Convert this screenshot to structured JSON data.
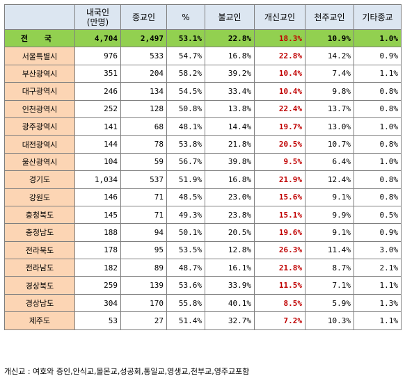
{
  "table": {
    "headers": [
      "",
      "내국인\n(만명)",
      "종교인",
      "%",
      "불교인",
      "개신교인",
      "천주교인",
      "기타종교"
    ],
    "total": {
      "region": "전 국",
      "cells": [
        "4,704",
        "2,497",
        "53.1%",
        "22.8%",
        "18.3%",
        "10.9%",
        "1.0%"
      ]
    },
    "rows": [
      {
        "region": "서울특별시",
        "cells": [
          "976",
          "533",
          "54.7%",
          "16.8%",
          "22.8%",
          "14.2%",
          "0.9%"
        ]
      },
      {
        "region": "부산광역시",
        "cells": [
          "351",
          "204",
          "58.2%",
          "39.2%",
          "10.4%",
          "7.4%",
          "1.1%"
        ]
      },
      {
        "region": "대구광역시",
        "cells": [
          "246",
          "134",
          "54.5%",
          "33.4%",
          "10.4%",
          "9.8%",
          "0.8%"
        ]
      },
      {
        "region": "인천광역시",
        "cells": [
          "252",
          "128",
          "50.8%",
          "13.8%",
          "22.4%",
          "13.7%",
          "0.8%"
        ]
      },
      {
        "region": "광주광역시",
        "cells": [
          "141",
          "68",
          "48.1%",
          "14.4%",
          "19.7%",
          "13.0%",
          "1.0%"
        ]
      },
      {
        "region": "대전광역시",
        "cells": [
          "144",
          "78",
          "53.8%",
          "21.8%",
          "20.5%",
          "10.7%",
          "0.8%"
        ]
      },
      {
        "region": "울산광역시",
        "cells": [
          "104",
          "59",
          "56.7%",
          "39.8%",
          "9.5%",
          "6.4%",
          "1.0%"
        ]
      },
      {
        "region": "경기도",
        "cells": [
          "1,034",
          "537",
          "51.9%",
          "16.8%",
          "21.9%",
          "12.4%",
          "0.8%"
        ]
      },
      {
        "region": "강원도",
        "cells": [
          "146",
          "71",
          "48.5%",
          "23.0%",
          "15.6%",
          "9.1%",
          "0.8%"
        ]
      },
      {
        "region": "충청북도",
        "cells": [
          "145",
          "71",
          "49.3%",
          "23.8%",
          "15.1%",
          "9.9%",
          "0.5%"
        ]
      },
      {
        "region": "충청남도",
        "cells": [
          "188",
          "94",
          "50.1%",
          "20.5%",
          "19.6%",
          "9.1%",
          "0.9%"
        ]
      },
      {
        "region": "전라북도",
        "cells": [
          "178",
          "95",
          "53.5%",
          "12.8%",
          "26.3%",
          "11.4%",
          "3.0%"
        ]
      },
      {
        "region": "전라남도",
        "cells": [
          "182",
          "89",
          "48.7%",
          "16.1%",
          "21.8%",
          "8.7%",
          "2.1%"
        ]
      },
      {
        "region": "경상북도",
        "cells": [
          "259",
          "139",
          "53.6%",
          "33.9%",
          "11.5%",
          "7.1%",
          "1.1%"
        ]
      },
      {
        "region": "경상남도",
        "cells": [
          "304",
          "170",
          "55.8%",
          "40.1%",
          "8.5%",
          "5.9%",
          "1.3%"
        ]
      },
      {
        "region": "제주도",
        "cells": [
          "53",
          "27",
          "51.4%",
          "32.7%",
          "7.2%",
          "10.3%",
          "1.1%"
        ]
      }
    ]
  },
  "footnote": "개신교 : 여호와 증인,안식교,몰몬교,성공회,통일교,영생교,천부교,영주교포함",
  "colors": {
    "header_bg": "#dce6f1",
    "region_bg": "#fcd5b4",
    "total_bg": "#92d050",
    "protestant_text": "#c00000"
  }
}
